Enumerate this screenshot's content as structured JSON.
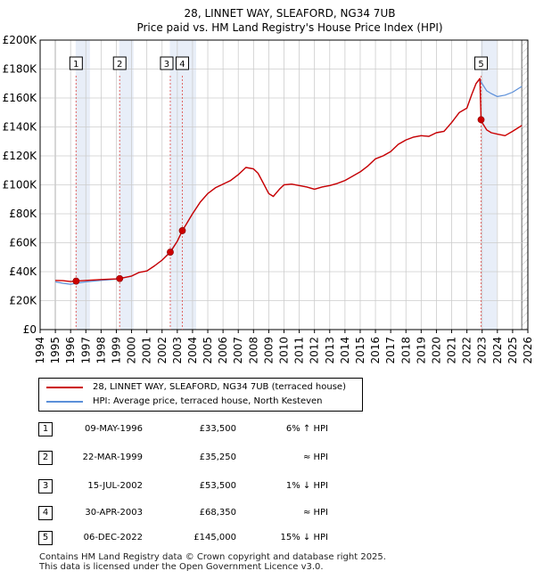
{
  "chart_data": {
    "type": "line",
    "title": "28, LINNET WAY, SLEAFORD, NG34 7UB",
    "subtitle": "Price paid vs. HM Land Registry's House Price Index (HPI)",
    "xlim": [
      1994,
      2026
    ],
    "ylim": [
      0,
      200000
    ],
    "x_ticks": [
      1994,
      1995,
      1996,
      1997,
      1998,
      1999,
      2000,
      2001,
      2002,
      2003,
      2004,
      2005,
      2006,
      2007,
      2008,
      2009,
      2010,
      2011,
      2012,
      2013,
      2014,
      2015,
      2016,
      2017,
      2018,
      2019,
      2020,
      2021,
      2022,
      2023,
      2024,
      2025,
      2026
    ],
    "y_ticks": [
      {
        "value": 0,
        "label": "£0"
      },
      {
        "value": 20000,
        "label": "£20K"
      },
      {
        "value": 40000,
        "label": "£40K"
      },
      {
        "value": 60000,
        "label": "£60K"
      },
      {
        "value": 80000,
        "label": "£80K"
      },
      {
        "value": 100000,
        "label": "£100K"
      },
      {
        "value": 120000,
        "label": "£120K"
      },
      {
        "value": 140000,
        "label": "£140K"
      },
      {
        "value": 160000,
        "label": "£160K"
      },
      {
        "value": 180000,
        "label": "£180K"
      },
      {
        "value": 200000,
        "label": "£200K"
      }
    ],
    "data_start": 1995.0,
    "data_end": 2025.6,
    "series": [
      {
        "name": "28, LINNET WAY, SLEAFORD, NG34 7UB (terraced house)",
        "color": "#cc0000",
        "points": [
          [
            1995.0,
            34000
          ],
          [
            1995.5,
            33800
          ],
          [
            1996.0,
            33200
          ],
          [
            1996.36,
            33500
          ],
          [
            1997.0,
            34000
          ],
          [
            1998.0,
            34600
          ],
          [
            1999.0,
            35000
          ],
          [
            1999.22,
            35250
          ],
          [
            2000.0,
            37000
          ],
          [
            2000.5,
            39500
          ],
          [
            2001.0,
            40500
          ],
          [
            2001.5,
            44000
          ],
          [
            2002.0,
            48000
          ],
          [
            2002.54,
            53500
          ],
          [
            2003.0,
            61000
          ],
          [
            2003.33,
            68350
          ],
          [
            2003.6,
            73000
          ],
          [
            2004.0,
            80000
          ],
          [
            2004.5,
            88000
          ],
          [
            2005.0,
            94000
          ],
          [
            2005.5,
            98000
          ],
          [
            2006.0,
            100500
          ],
          [
            2006.5,
            103000
          ],
          [
            2007.0,
            107000
          ],
          [
            2007.5,
            112000
          ],
          [
            2008.0,
            111000
          ],
          [
            2008.3,
            108000
          ],
          [
            2008.7,
            100000
          ],
          [
            2009.0,
            94000
          ],
          [
            2009.3,
            92000
          ],
          [
            2009.7,
            97000
          ],
          [
            2010.0,
            100000
          ],
          [
            2010.5,
            100500
          ],
          [
            2011.0,
            99500
          ],
          [
            2011.5,
            98500
          ],
          [
            2012.0,
            97000
          ],
          [
            2012.5,
            98500
          ],
          [
            2013.0,
            99500
          ],
          [
            2013.5,
            101000
          ],
          [
            2014.0,
            103000
          ],
          [
            2014.5,
            106000
          ],
          [
            2015.0,
            109000
          ],
          [
            2015.5,
            113000
          ],
          [
            2016.0,
            118000
          ],
          [
            2016.5,
            120000
          ],
          [
            2017.0,
            123000
          ],
          [
            2017.5,
            128000
          ],
          [
            2018.0,
            131000
          ],
          [
            2018.5,
            133000
          ],
          [
            2019.0,
            134000
          ],
          [
            2019.5,
            133500
          ],
          [
            2020.0,
            136000
          ],
          [
            2020.5,
            137000
          ],
          [
            2021.0,
            143000
          ],
          [
            2021.5,
            150000
          ],
          [
            2022.0,
            153000
          ],
          [
            2022.3,
            162000
          ],
          [
            2022.6,
            170000
          ],
          [
            2022.85,
            173500
          ],
          [
            2022.93,
            145000
          ],
          [
            2023.0,
            143000
          ],
          [
            2023.3,
            138000
          ],
          [
            2023.6,
            136000
          ],
          [
            2024.0,
            135000
          ],
          [
            2024.5,
            134000
          ],
          [
            2025.0,
            137000
          ],
          [
            2025.6,
            141000
          ]
        ]
      },
      {
        "name": "HPI: Average price, terraced house, North Kesteven",
        "color": "#5b8fd9",
        "points": [
          [
            1995.0,
            33000
          ],
          [
            1995.5,
            32000
          ],
          [
            1996.0,
            31300
          ],
          [
            1996.36,
            32000
          ],
          [
            1997.0,
            33000
          ],
          [
            1998.0,
            34000
          ],
          [
            1999.0,
            34800
          ],
          [
            1999.22,
            35250
          ],
          [
            2000.0,
            37000
          ],
          [
            2000.5,
            39500
          ],
          [
            2001.0,
            40500
          ],
          [
            2001.5,
            44000
          ],
          [
            2002.0,
            48000
          ],
          [
            2002.54,
            54000
          ],
          [
            2003.0,
            61000
          ],
          [
            2003.33,
            68350
          ],
          [
            2003.6,
            73000
          ],
          [
            2004.0,
            80000
          ],
          [
            2004.5,
            88000
          ],
          [
            2005.0,
            94000
          ],
          [
            2005.5,
            98000
          ],
          [
            2006.0,
            100500
          ],
          [
            2006.5,
            103000
          ],
          [
            2007.0,
            107000
          ],
          [
            2007.5,
            112000
          ],
          [
            2008.0,
            111000
          ],
          [
            2008.3,
            108000
          ],
          [
            2008.7,
            100000
          ],
          [
            2009.0,
            94000
          ],
          [
            2009.3,
            92000
          ],
          [
            2009.7,
            97000
          ],
          [
            2010.0,
            100000
          ],
          [
            2010.5,
            100500
          ],
          [
            2011.0,
            99500
          ],
          [
            2011.5,
            98500
          ],
          [
            2012.0,
            97000
          ],
          [
            2012.5,
            98500
          ],
          [
            2013.0,
            99500
          ],
          [
            2013.5,
            101000
          ],
          [
            2014.0,
            103000
          ],
          [
            2014.5,
            106000
          ],
          [
            2015.0,
            109000
          ],
          [
            2015.5,
            113000
          ],
          [
            2016.0,
            118000
          ],
          [
            2016.5,
            120000
          ],
          [
            2017.0,
            123000
          ],
          [
            2017.5,
            128000
          ],
          [
            2018.0,
            131000
          ],
          [
            2018.5,
            133000
          ],
          [
            2019.0,
            134000
          ],
          [
            2019.5,
            133500
          ],
          [
            2020.0,
            136000
          ],
          [
            2020.5,
            137000
          ],
          [
            2021.0,
            143000
          ],
          [
            2021.5,
            150000
          ],
          [
            2022.0,
            153000
          ],
          [
            2022.3,
            162000
          ],
          [
            2022.6,
            170000
          ],
          [
            2022.85,
            173000
          ],
          [
            2022.93,
            171000
          ],
          [
            2023.0,
            170000
          ],
          [
            2023.3,
            165000
          ],
          [
            2023.6,
            163000
          ],
          [
            2024.0,
            161000
          ],
          [
            2024.5,
            162000
          ],
          [
            2025.0,
            164000
          ],
          [
            2025.6,
            168000
          ]
        ]
      }
    ],
    "sales": [
      {
        "label": "1",
        "x": 1996.36,
        "price": 33500
      },
      {
        "label": "2",
        "x": 1999.22,
        "price": 35250
      },
      {
        "label": "3",
        "x": 2002.54,
        "price": 53500
      },
      {
        "label": "4",
        "x": 2003.33,
        "price": 68350
      },
      {
        "label": "5",
        "x": 2022.93,
        "price": 145000
      }
    ]
  },
  "legend": {
    "items": [
      {
        "label": "28, LINNET WAY, SLEAFORD, NG34 7UB (terraced house)",
        "color": "#cc0000"
      },
      {
        "label": "HPI: Average price, terraced house, North Kesteven",
        "color": "#5b8fd9"
      }
    ]
  },
  "sales_table": [
    {
      "num": "1",
      "date": "09-MAY-1996",
      "price": "£33,500",
      "hpi": "6% ↑ HPI"
    },
    {
      "num": "2",
      "date": "22-MAR-1999",
      "price": "£35,250",
      "hpi": "≈ HPI"
    },
    {
      "num": "3",
      "date": "15-JUL-2002",
      "price": "£53,500",
      "hpi": "1% ↓ HPI"
    },
    {
      "num": "4",
      "date": "30-APR-2003",
      "price": "£68,350",
      "hpi": "≈ HPI"
    },
    {
      "num": "5",
      "date": "06-DEC-2022",
      "price": "£145,000",
      "hpi": "15% ↓ HPI"
    }
  ],
  "footer": {
    "line1": "Contains HM Land Registry data © Crown copyright and database right 2025.",
    "line2": "This data is licensed under the Open Government Licence v3.0."
  },
  "colors": {
    "shade": "#e8eef8",
    "grid": "#cccccc",
    "marker_line": "#e06666",
    "sale_dot": "#cc0000"
  }
}
